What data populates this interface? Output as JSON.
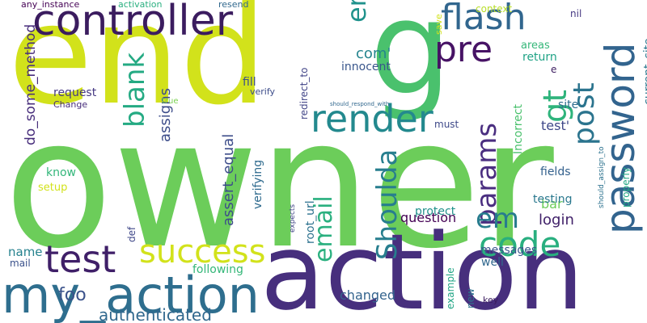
{
  "words": [
    {
      "text": "owner",
      "color": "#6ccd5a"
    },
    {
      "text": "end",
      "color": "#d2e21b"
    },
    {
      "text": "action",
      "color": "#472f7d"
    },
    {
      "text": "g",
      "color": "#4ac16d"
    },
    {
      "text": "my_action",
      "color": "#2e6e8e"
    },
    {
      "text": "controller",
      "color": "#3b1c5f"
    },
    {
      "text": "password",
      "color": "#32648e"
    },
    {
      "text": "test",
      "color": "#3f1f68"
    },
    {
      "text": "success",
      "color": "#d2e21b"
    },
    {
      "text": "render",
      "color": "#23898e"
    },
    {
      "text": "code",
      "color": "#29af7f"
    },
    {
      "text": "flash",
      "color": "#31668e"
    },
    {
      "text": "params",
      "color": "#4a2e80"
    },
    {
      "text": "pre",
      "color": "#471365"
    },
    {
      "text": "post",
      "color": "#2b748e"
    },
    {
      "text": "email",
      "color": "#2ab07f"
    },
    {
      "text": "Shoulda",
      "color": "#277e8e"
    },
    {
      "text": "blank",
      "color": "#24aa83"
    },
    {
      "text": "error",
      "color": "#20928c"
    },
    {
      "text": "em",
      "color": "#287c8e"
    },
    {
      "text": "gt",
      "color": "#2fb47c"
    },
    {
      "text": "authenticated",
      "color": "#31688e"
    },
    {
      "text": "foo",
      "color": "#3b528b"
    },
    {
      "text": "do_some_method",
      "color": "#472d7b"
    },
    {
      "text": "assert_equal",
      "color": "#3d4d8a"
    },
    {
      "text": "assigns",
      "color": "#3d4d8a"
    },
    {
      "text": "login",
      "color": "#3f1f68"
    },
    {
      "text": "com'",
      "color": "#25848e"
    },
    {
      "text": "name",
      "color": "#26828e"
    },
    {
      "text": "bar",
      "color": "#6ccd5a"
    },
    {
      "text": "current_site",
      "color": "#2a778e"
    },
    {
      "text": "changed",
      "color": "#33638d"
    },
    {
      "text": "question",
      "color": "#440154"
    },
    {
      "text": "innocent",
      "color": "#39568c"
    },
    {
      "text": "request",
      "color": "#453882"
    },
    {
      "text": "test'",
      "color": "#3f4889"
    },
    {
      "text": "fields",
      "color": "#34618d"
    },
    {
      "text": "root_url",
      "color": "#2c718e"
    },
    {
      "text": "know",
      "color": "#33b67a"
    },
    {
      "text": "protect",
      "color": "#21918c"
    },
    {
      "text": "testing",
      "color": "#2a788e"
    },
    {
      "text": "well",
      "color": "#31688e"
    },
    {
      "text": "fill",
      "color": "#3c4f8a"
    },
    {
      "text": "following",
      "color": "#35b779"
    },
    {
      "text": "verifying",
      "color": "#2f6b8e"
    },
    {
      "text": "site",
      "color": "#2e6d8e"
    },
    {
      "text": "messages",
      "color": "#39568c"
    },
    {
      "text": "mail",
      "color": "#3b528b"
    },
    {
      "text": "redirect_to",
      "color": "#414487"
    },
    {
      "text": "return",
      "color": "#20a386"
    },
    {
      "text": "Incorrect",
      "color": "#4ac16d"
    },
    {
      "text": "areas",
      "color": "#35b779"
    },
    {
      "text": "setup",
      "color": "#d2e21b"
    },
    {
      "text": "example",
      "color": "#21a585"
    },
    {
      "text": "properly",
      "color": "#22a884"
    },
    {
      "text": "new",
      "color": "#2c738e"
    },
    {
      "text": "must",
      "color": "#3e4989"
    },
    {
      "text": "def",
      "color": "#3f4788"
    },
    {
      "text": "context",
      "color": "#b8de29"
    },
    {
      "text": "nil",
      "color": "#453882"
    },
    {
      "text": "save",
      "color": "#d2e21b"
    },
    {
      "text": "e",
      "color": "#3b1c5f"
    },
    {
      "text": "resend",
      "color": "#31688e"
    },
    {
      "text": "activation",
      "color": "#29af7f"
    },
    {
      "text": "any_instance",
      "color": "#440154"
    },
    {
      "text": "verify",
      "color": "#3d4d8a"
    },
    {
      "text": "Change",
      "color": "#472d7b"
    },
    {
      "text": "true",
      "color": "#7ad151"
    },
    {
      "text": "key",
      "color": "#3b1c5f"
    },
    {
      "text": "expects",
      "color": "#414487"
    },
    {
      "text": "should_assign_to",
      "color": "#2c728e"
    },
    {
      "text": "should_respond_with",
      "color": "#31688e"
    }
  ]
}
